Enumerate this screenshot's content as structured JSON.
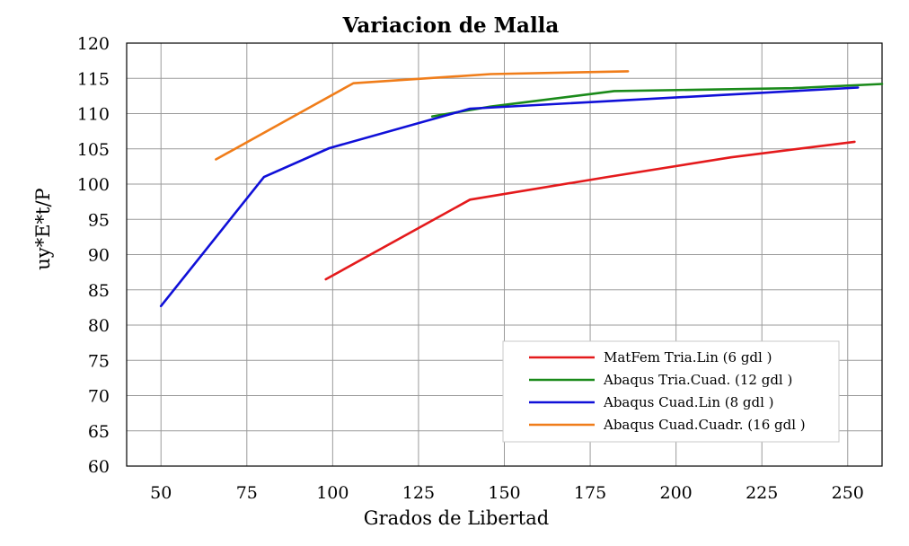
{
  "chart_data": {
    "type": "line",
    "title": "Variacion de Malla",
    "xlabel": "Grados de Libertad",
    "ylabel": "uy*E*t/P",
    "xlim": [
      40,
      260
    ],
    "ylim": [
      60,
      120
    ],
    "xticks": [
      50,
      75,
      100,
      125,
      150,
      175,
      200,
      225,
      250
    ],
    "yticks": [
      60,
      65,
      70,
      75,
      80,
      85,
      90,
      95,
      100,
      105,
      110,
      115,
      120
    ],
    "xtick_labels": [
      "50",
      "75",
      "100",
      "125",
      "150",
      "175",
      "200",
      "225",
      "250"
    ],
    "ytick_labels": [
      "60",
      "65",
      "70",
      "75",
      "80",
      "85",
      "90",
      "95",
      "100",
      "105",
      "110",
      "115",
      "120"
    ],
    "grid": true,
    "legend_position": "bottom-right",
    "series": [
      {
        "name": "MatFem Tria.Lin (6 gdl )",
        "color": "#e41a1c",
        "x": [
          98,
          140,
          180,
          216,
          252
        ],
        "y": [
          86.5,
          97.8,
          101.0,
          103.8,
          106.0
        ]
      },
      {
        "name": "Abaqus Tria.Cuad. (12 gdl )",
        "color": "#1a8a1a",
        "x": [
          129,
          146,
          182,
          234,
          260
        ],
        "y": [
          109.6,
          111.0,
          113.2,
          113.6,
          114.2
        ]
      },
      {
        "name": "Abaqus Cuad.Lin (8 gdl )",
        "color": "#1010d8",
        "x": [
          50,
          80,
          99,
          140,
          253
        ],
        "y": [
          82.7,
          101.0,
          105.1,
          110.7,
          113.7
        ]
      },
      {
        "name": "Abaqus Cuad.Cuadr. (16 gdl )",
        "color": "#f07d1a",
        "x": [
          66,
          106,
          146,
          186
        ],
        "y": [
          103.5,
          114.3,
          115.6,
          116.0
        ]
      }
    ]
  }
}
